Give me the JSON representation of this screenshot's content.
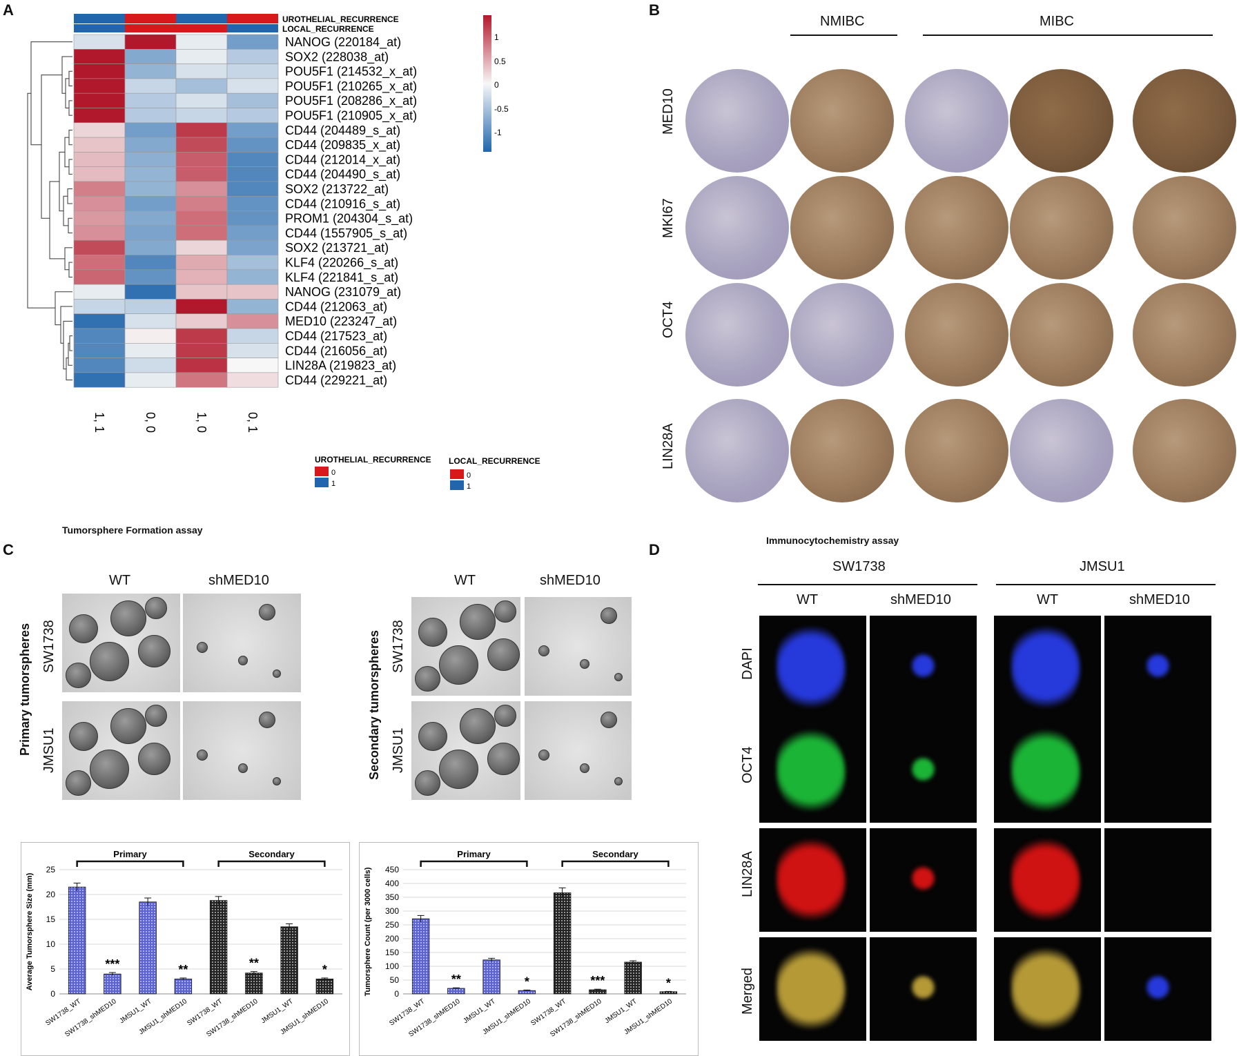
{
  "panels": {
    "A": "A",
    "B": "B",
    "C": "C",
    "D": "D"
  },
  "heatmap": {
    "annotation_rows": [
      "UROTHELIAL_RECURRENCE",
      "LOCAL_RECURRENCE"
    ],
    "columns": [
      "1, 1",
      "0, 0",
      "1, 0",
      "0, 1"
    ],
    "annotation_colors": {
      "urothelial": [
        "#2166ac",
        "#d7191c",
        "#2166ac",
        "#d7191c"
      ],
      "local": [
        "#2166ac",
        "#d7191c",
        "#d7191c",
        "#2166ac"
      ]
    },
    "genes": [
      "NANOG (220184_at)",
      "SOX2 (228038_at)",
      "POU5F1 (214532_x_at)",
      "POU5F1 (210265_x_at)",
      "POU5F1 (208286_x_at)",
      "POU5F1 (210905_x_at)",
      "CD44 (204489_s_at)",
      "CD44 (209835_x_at)",
      "CD44 (212014_x_at)",
      "CD44 (204490_s_at)",
      "SOX2 (213722_at)",
      "CD44 (210916_s_at)",
      "PROM1 (204304_s_at)",
      "CD44 (1557905_s_at)",
      "SOX2 (213721_at)",
      "KLF4 (220266_s_at)",
      "KLF4 (221841_s_at)",
      "NANOG (231079_at)",
      "CD44 (212063_at)",
      "MED10 (223247_at)",
      "CD44 (217523_at)",
      "CD44 (216056_at)",
      "LIN28A (219823_at)",
      "CD44 (229221_at)"
    ],
    "values": [
      [
        -0.2,
        1.3,
        -0.1,
        -0.8
      ],
      [
        1.3,
        -0.7,
        -0.1,
        -0.4
      ],
      [
        1.3,
        -0.6,
        -0.2,
        -0.3
      ],
      [
        1.3,
        -0.3,
        -0.5,
        -0.2
      ],
      [
        1.3,
        -0.4,
        -0.2,
        -0.5
      ],
      [
        1.3,
        -0.4,
        -0.3,
        -0.4
      ],
      [
        0.2,
        -0.8,
        1.1,
        -0.8
      ],
      [
        0.3,
        -0.7,
        1.0,
        -0.9
      ],
      [
        0.35,
        -0.65,
        0.9,
        -1.0
      ],
      [
        0.35,
        -0.6,
        0.9,
        -1.0
      ],
      [
        0.7,
        -0.6,
        0.6,
        -1.0
      ],
      [
        0.6,
        -0.8,
        0.7,
        -0.9
      ],
      [
        0.55,
        -0.7,
        0.8,
        -0.9
      ],
      [
        0.6,
        -0.75,
        0.8,
        -0.8
      ],
      [
        1.0,
        -0.7,
        0.2,
        -0.75
      ],
      [
        0.8,
        -1.0,
        0.45,
        -0.5
      ],
      [
        0.85,
        -0.9,
        0.4,
        -0.6
      ],
      [
        -0.1,
        -1.2,
        0.3,
        0.3
      ],
      [
        -0.3,
        -0.35,
        1.3,
        -0.6
      ],
      [
        -1.2,
        -0.2,
        0.25,
        0.6
      ],
      [
        -1.0,
        0.05,
        1.1,
        -0.3
      ],
      [
        -1.0,
        -0.1,
        1.1,
        -0.2
      ],
      [
        -1.0,
        -0.25,
        1.15,
        0.0
      ],
      [
        -1.2,
        -0.1,
        0.75,
        0.15
      ]
    ],
    "scale_ticks": [
      "1",
      "0.5",
      "0",
      "-0.5",
      "-1"
    ],
    "legend": {
      "uro_title": "UROTHELIAL_RECURRENCE",
      "local_title": "LOCAL_RECURRENCE",
      "level0": "0",
      "level1": "1"
    }
  },
  "ihc": {
    "group_nmibc": "NMIBC",
    "group_mibc": "MIBC",
    "rows": [
      "MED10",
      "MKI67",
      "OCT4",
      "LIN28A"
    ]
  },
  "tumorsphere": {
    "title": "Tumorsphere Formation assay",
    "col_wt": "WT",
    "col_sh": "shMED10",
    "primary_label": "Primary  tumorspheres",
    "secondary_label": "Secondary  tumorspheres",
    "row_sw": "SW1738",
    "row_jm": "JMSU1"
  },
  "icc": {
    "title": "Immunocytochemistry assay",
    "line1": "SW1738",
    "line2": "JMSU1",
    "col_wt": "WT",
    "col_sh": "shMED10",
    "rows": [
      "DAPI",
      "OCT4",
      "LIN28A",
      "Merged"
    ]
  },
  "chart_data": [
    {
      "type": "bar",
      "ylabel": "Average Tumorsphere Size (mm)",
      "ylim": [
        0,
        25
      ],
      "yticks": [
        0,
        5,
        10,
        15,
        20,
        25
      ],
      "categories": [
        "SW1738_WT",
        "SW1738_shMED10",
        "JMSU1_WT",
        "JMSU1_shMED10",
        "SW1738_WT",
        "SW1738_shMED10",
        "JMSU1_WT",
        "JMSU1_shMED10"
      ],
      "values": [
        21.5,
        4.0,
        18.5,
        3.0,
        18.8,
        4.2,
        13.5,
        3.0
      ],
      "errors": [
        0.8,
        0.3,
        0.8,
        0.2,
        0.8,
        0.3,
        0.6,
        0.2
      ],
      "significance": [
        "",
        "***",
        "",
        "**",
        "",
        "**",
        "",
        "*"
      ],
      "groups": [
        "Primary",
        "Secondary"
      ],
      "grid": true
    },
    {
      "type": "bar",
      "ylabel": "Tumorsphere Count (per 3000 cells)",
      "ylim": [
        0,
        450
      ],
      "yticks": [
        0,
        50,
        100,
        150,
        200,
        250,
        300,
        350,
        400,
        450
      ],
      "categories": [
        "SW1738_WT",
        "SW1738_shMED10",
        "JMSU1_WT",
        "JMSU1_shMED10",
        "SW1738_WT",
        "SW1738_shMED10",
        "JMSU1_WT",
        "JMSU1_shMED10"
      ],
      "values": [
        272,
        20,
        123,
        12,
        366,
        15,
        115,
        8
      ],
      "errors": [
        12,
        2,
        6,
        2,
        18,
        2,
        5,
        1
      ],
      "significance": [
        "",
        "**",
        "",
        "*",
        "",
        "***",
        "",
        "*"
      ],
      "groups": [
        "Primary",
        "Secondary"
      ],
      "grid": true
    }
  ]
}
